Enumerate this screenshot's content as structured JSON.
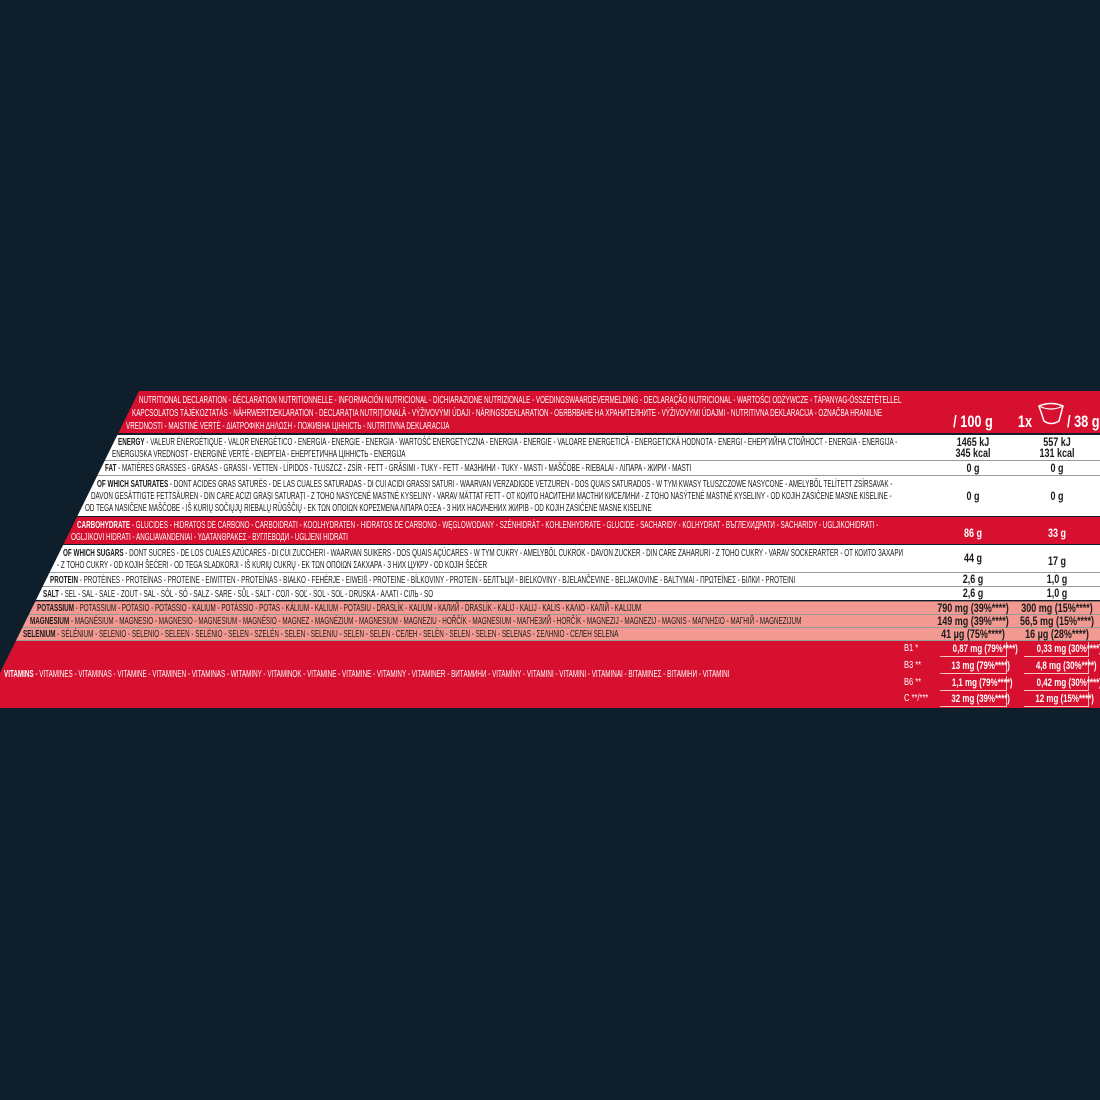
{
  "colors": {
    "background": "#0e1e2b",
    "red": "#d8102f",
    "salmon": "#f29a92",
    "white": "#ffffff"
  },
  "header": {
    "lines": [
      "NUTRITIONAL DECLARATION - DÉCLARATION NUTRITIONNELLE - INFORMACIÓN NUTRICIONAL - DICHIARAZIONE NUTRIZIONALE - VOEDINGSWAARDEVERMELDING - DECLARAÇÃO NUTRICIONAL - WARTOŚCI ODŻYWCZE - TÁPANYAG-ÖSSZETÉTELLEL",
      "KAPCSOLATOS TÁJÉKOZTATÁS - NÄHRWERTDEKLARATION - DECLARAȚIA NUTRIȚIONALĂ - VÝŽIVOVÝMI ÚDAJI - NÄRINGSDEKLARATION - ОБЯВЯВАНЕ НА ХРАНИТЕЛНИТЕ - VÝŽIVOVÝMI ÚDAJMI - NUTRITIVNA DEKLARACIJA - OZNAČBA HRANILNE",
      "VREDNOSTI - MAISTINĖ VERTĖ - ΔΙΑΤΡΟΦΙΚΗ ΔΗΛΩΣΗ - ПОЖИВНА ЦІННІСТЬ - NUTRITIVNA DEKLARACIJA"
    ],
    "per_100g": "/ 100 g",
    "portion_count": "1x",
    "portion_icon": "bowl-icon",
    "per_portion": "/ 38 g"
  },
  "rows": {
    "energy": {
      "label": "ENERGY",
      "lines": [
        " - VALEUR ÉNERGÉTIQUE - VALOR ENERGÉTICO - ENERGIA - ENERGIE - ENERGIA - WARTOŚĆ ENERGETYCZNA - ENERGIA - ENERGIE - VALOARE ENERGETICĂ - ENERGETICKÁ HODNOTA - ENERGI - ЕНЕРГИЙНА СТОЙНОСТ - ENERGIA - ENERGIJA -",
        "ENERGIJSKA VREDNOST - ENERGINĖ VERTĖ - ΕΝΕΡΓΕΙΑ - ЕНЕРГЕТИЧНА ЦІННІСТЬ - ENERGIJA"
      ],
      "v100_kj": "1465 kJ",
      "v100_kcal": "345 kcal",
      "vp_kj": "557 kJ",
      "vp_kcal": "131 kcal"
    },
    "fat": {
      "label": "FAT",
      "lines": [
        " - MATIÈRES GRASSES - GRASAS - GRASSI - VETTEN - LÍPIDOS - TŁUSZCZ - ZSÍR - FETT - GRĂSIMI - TUKY - FETT - МАЗНИНИ - TUKY - MASTI - MAŠČOBE - RIEBALAI - ΛΙΠΑΡΑ - ЖИРИ - MASTI"
      ],
      "v100": "0 g",
      "vp": "0 g"
    },
    "saturates": {
      "label": "OF WHICH SATURATES",
      "lines": [
        " - DONT ACIDES GRAS SATURÉS - DE LAS CUALES SATURADAS  - DI CUI ACIDI GRASSI SATURI - WAARVAN VERZADIGDE VETZUREN - DOS QUAIS SATURADOS - W TYM KWASY TŁUSZCZOWE NASYCONE - AMELYBŐL TELÍTETT ZSÍRSAVAK -",
        "DAVON GESÄTTIGTE FETTSÄUREN - DIN CARE ACIZI GRAȘI SATURAȚI - Z TOHO NASYCENÉ MASTNÉ KYSELINY - VARAV MÄTTAT FETT - ОТ КОИТО НАСИТЕНИ МАСТНИ КИСЕЛИНИ - Z TOHO NASÝTENÉ MASTNÉ KYSELINY  - OD KOJIH ZASIĆENE MASNE KISELINE -",
        "OD TEGA NASIČENE MAŠČOBE - IŠ KURIŲ SOČIŲJŲ RIEBALŲ RŪGŠČIŲ - ΕΚ ΤΩΝ ΟΠΟΙΩΝ ΚΟΡΕΣΜΕΝΑ ΛΙΠΑΡΑ ΟΞΕΑ - З НИХ НАСИЧЕНИХ ЖИРІВ - OD KOJIH ZASIĆENE MASNE KISELINE"
      ],
      "v100": "0 g",
      "vp": "0 g"
    },
    "carbohydrate": {
      "label": "CARBOHYDRATE",
      "lines": [
        " - GLUCIDES - HIDRATOS DE CARBONO - CARBOIDRATI - KOOLHYDRATEN - HIDRATOS DE CARBONO - WĘGLOWODANY - SZÉNHIDRÁT - KOHLENHYDRATE - GLUCIDE - SACHARIDY - KOLHYDRAT - ВЪГЛЕХИДРАТИ - SACHARIDY - UGLJIKOHIDRATI -",
        "OGLJIKOVI HIDRATI - ANGLIAVANDENIAI - ΥΔΑΤΑΝΘΡΑΚΕΣ - ВУГЛЕВОДИ - UGLJENI HIDRATI"
      ],
      "v100": "86 g",
      "vp": "33 g"
    },
    "sugars": {
      "label": "OF WHICH SUGARS",
      "lines": [
        " - DONT SUCRES - DE LOS CUALES AZÚCARES - DI CUI ZUCCHERI - WAARVAN SUIKERS - DOS QUAIS AÇÚCARES - W TYM CUKRY - AMELYBŐL CUKROK - DAVON ZUCKER - DIN CARE ZAHARURI - Z TOHO CUKRY - VARAV SOCKERARTER - ОТ КОИТО ЗАХАРИ",
        "- Z TOHO CUKRY - OD KOJIH ŠEĆERI - OD TEGA SLADKORJI - IŠ KURIŲ CUKRŲ - ΕΚ ΤΩΝ ΟΠΟΙΩΝ ΣΑΚΧΑΡΑ - З НИХ ЦУКРУ - OD KOJIH ŠEĆER"
      ],
      "v100": "44 g",
      "vp": "17 g"
    },
    "protein": {
      "label": "PROTEIN",
      "lines": [
        " - PROTÉINES - PROTEÍNAS - PROTEINE - EIWITTEN - PROTEÍNAS - BIAŁKO - FEHÉRJE - EIWEIß - PROTEINE - BÍLKOVINY - PROTEIN - БЕЛТЪЦИ - BIELKOVINY - BJELANČEVINE - BELJAKOVINE - BALTYMAI - ΠΡΩΤΕΪΝΕΣ  - БІЛКИ - PROTEINI"
      ],
      "v100": "2,6 g",
      "vp": "1,0 g"
    },
    "salt": {
      "label": "SALT",
      "lines": [
        " - SEL - SAL - SALE - ZOUT - SAL - SÓL - SÓ - SALZ - SARE - SŮL - SALT - СОЛ - SOĽ - SOL - SOL - DRUSKA  - ΑΛΑΤΙ  - СІЛЬ - SO"
      ],
      "v100": "2,6 g",
      "vp": "1,0 g"
    },
    "potassium": {
      "label": "POTASSIUM",
      "lines": [
        " - POTASSIUM - POTASIO - POTASSIO - KALIUM - POTÁSSIO - POTAS - KÁLIUM - KALIUM - POTASIU - DRASLÍK - KALIUM - КАЛИЙ - DRASLÍK - KALIJ - KALIJ - KALIS - ΚΑΛΙΟ - КАЛІЙ - KALIJUM"
      ],
      "v100": "790 mg (39%****)",
      "vp": "300 mg (15%****)"
    },
    "magnesium": {
      "label": "MAGNESIUM",
      "lines": [
        " - MAGNÉSIUM - MAGNESIO - MAGNESIO - MAGNESIUM - MAGNÉSIO - MAGNEZ - MAGNÉZIUM - MAGNESIUM - MAGNEZIU - HOŘČÍK - MAGNESIUM - МАГНЕЗИЙ - HORČÍK - MAGNEZIJ - MAGNEZIJ - MAGNIS - ΜΑΓΝΗΣΙΟ - МАГНІЙ - MAGNEZIJUM"
      ],
      "v100": "149 mg (39%****)",
      "vp": "56,5 mg (15%****)"
    },
    "selenium": {
      "label": "SELENIUM",
      "lines": [
        " - SÉLÉNIUM - SELENIO - SELENIO - SELEEN - SELÉNIO - SELEN - SZELÉN - SELEN - SELENIU - SELEN - SELEN - СЕЛЕН - SELÉN - SELEN - SELEN - SELENAS - ΣΕΛΗΝΙΟ - СЕЛЕН SELENA"
      ],
      "v100": "41 µg (75%****)",
      "vp": "16 µg (28%****)"
    }
  },
  "vitamins": {
    "label": "VITAMINS",
    "text": " - VITAMINES - VITAMINAS - VITAMINE - VITAMINEN - VITAMINAS - WITAMINY - VITAMINOK - VITAMINE - VITAMINE - VITAMINY - VITAMINER - ВИТАМИНИ - VITAMÍNY - VITAMINI - VITAMINI - VITAMINAI - ΒΙΤΑΜΙΝΕΣ - ВІТАМІНИ - VITAMINI",
    "items": [
      {
        "name": "B1 *",
        "v100": "0,87 mg (79%****)",
        "vp": "0,33 mg (30%****)"
      },
      {
        "name": "B3 **",
        "v100": "13 mg (79%****)",
        "vp": "4,8 mg (30%****)"
      },
      {
        "name": "B6 **",
        "v100": "1,1 mg (79%****)",
        "vp": "0,42 mg (30%****)"
      },
      {
        "name": "C **/***",
        "v100": "32 mg (39%****)",
        "vp": "12 mg (15%****)"
      }
    ]
  }
}
